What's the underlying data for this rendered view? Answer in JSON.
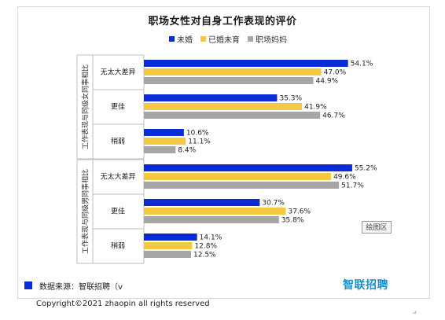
{
  "title": "职场女性对自身工作表现的评价",
  "legend_colors": {
    "未婚": "#0b2bd6",
    "已婚未育": "#f5c842",
    "职场妈妈": "#a6a6a6"
  },
  "chart_data": {
    "type": "bar",
    "orientation": "horizontal",
    "title": "职场女性对自身工作表现的评价",
    "groups": [
      {
        "label": "工作表现与同级女同事相比",
        "categories": [
          "无太大差异",
          "更佳",
          "稍弱"
        ]
      },
      {
        "label": "工作表现与同级男同事相比",
        "categories": [
          "无太大差异",
          "更佳",
          "稍弱"
        ]
      }
    ],
    "series": [
      {
        "name": "未婚",
        "color": "#0b2bd6",
        "values": [
          54.1,
          35.3,
          10.6,
          55.2,
          30.7,
          14.1
        ]
      },
      {
        "name": "已婚未育",
        "color": "#f5c842",
        "values": [
          47.0,
          41.9,
          11.1,
          49.6,
          37.6,
          12.8
        ]
      },
      {
        "name": "职场妈妈",
        "color": "#a6a6a6",
        "values": [
          44.9,
          46.7,
          8.4,
          51.7,
          35.8,
          12.5
        ]
      }
    ],
    "value_suffix": "%",
    "xlim": [
      0,
      60
    ],
    "legend_position": "top"
  },
  "button": {
    "label": "绘图区"
  },
  "footer": {
    "source": "数据来源：智联招聘（v",
    "brand": "智联招聘",
    "copyright": "Copyright©2021 zhaopin all rights reserved"
  },
  "corner_mark": "⊿"
}
